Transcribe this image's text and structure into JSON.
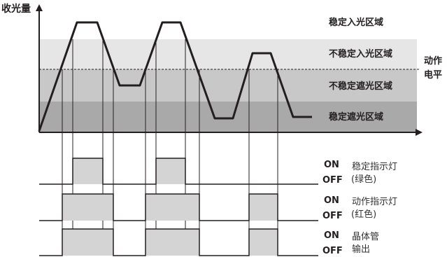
{
  "y_axis_label": "收光量",
  "action_level_label": [
    "动作",
    "电平"
  ],
  "zones": [
    {
      "label": "稳定入光区域",
      "fill": "#ffffff"
    },
    {
      "label": "不稳定入光区域",
      "fill": "#e6e6e6"
    },
    {
      "label": "不稳定遮光区域",
      "fill": "#c8c8c8"
    },
    {
      "label": "稳定遮光区域",
      "fill": "#a9a9a9"
    }
  ],
  "signals": [
    {
      "on": "ON",
      "off": "OFF",
      "name_line1": "稳定指示灯",
      "name_line2": "(绿色)"
    },
    {
      "on": "ON",
      "off": "OFF",
      "name_line1": "动作指示灯",
      "name_line2": "(红色)"
    },
    {
      "on": "ON",
      "off": "OFF",
      "name_line1": "晶体管",
      "name_line2": "输出"
    }
  ],
  "colors": {
    "line": "#231f20",
    "pulse_fill": "#d4d4d4",
    "background": "#ffffff"
  }
}
